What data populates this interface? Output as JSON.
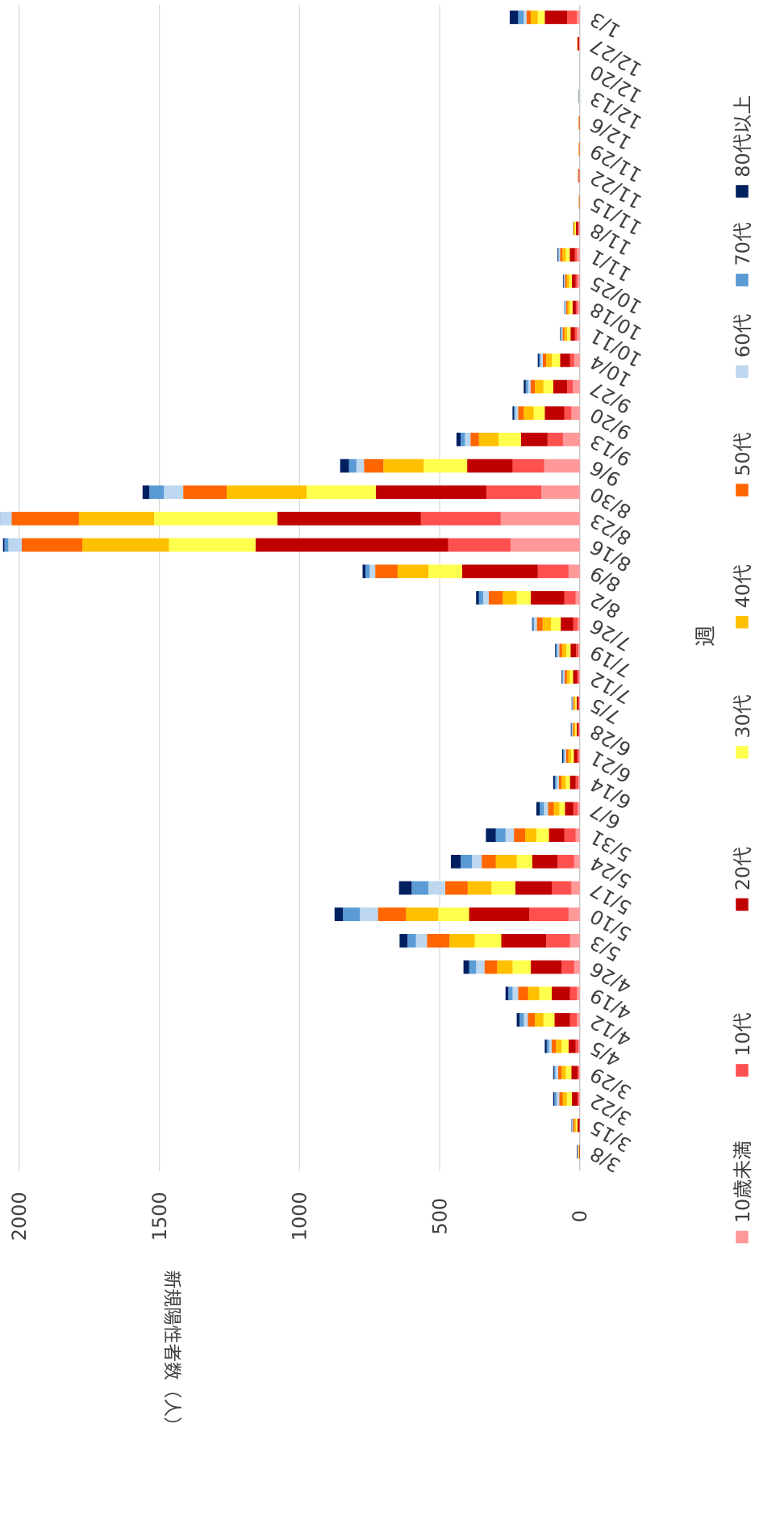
{
  "chart_data": {
    "type": "bar",
    "stacked": true,
    "orientation": "rotated",
    "x_label": "週",
    "y_label": "新規陽性者数（人）",
    "categories": [
      "3/8",
      "3/15",
      "3/22",
      "3/29",
      "4/5",
      "4/12",
      "4/19",
      "4/26",
      "5/3",
      "5/10",
      "5/17",
      "5/24",
      "5/31",
      "6/7",
      "6/14",
      "6/21",
      "6/28",
      "7/5",
      "7/12",
      "7/19",
      "7/26",
      "8/2",
      "8/9",
      "8/16",
      "8/23",
      "8/30",
      "9/6",
      "9/13",
      "9/20",
      "9/27",
      "10/4",
      "10/11",
      "10/18",
      "10/25",
      "11/1",
      "11/8",
      "11/15",
      "11/22",
      "11/29",
      "12/6",
      "12/13",
      "12/20",
      "12/27",
      "1/3"
    ],
    "series": [
      {
        "name": "10歳未満",
        "color": "#ff9999",
        "values": [
          0,
          0,
          3,
          3,
          5,
          10,
          10,
          20,
          35,
          40,
          30,
          20,
          15,
          8,
          5,
          3,
          2,
          2,
          3,
          5,
          8,
          15,
          40,
          247,
          282,
          137,
          127,
          60,
          30,
          25,
          20,
          10,
          8,
          8,
          10,
          3,
          0,
          1,
          1,
          0,
          0,
          0,
          2,
          10
        ]
      },
      {
        "name": "10代",
        "color": "#ff5050",
        "values": [
          0,
          1,
          5,
          5,
          10,
          25,
          25,
          45,
          85,
          140,
          70,
          60,
          40,
          15,
          10,
          6,
          3,
          3,
          6,
          8,
          15,
          40,
          110,
          223,
          285,
          196,
          113,
          55,
          25,
          20,
          15,
          8,
          6,
          7,
          8,
          3,
          0,
          1,
          0,
          1,
          0,
          0,
          1,
          35
        ]
      },
      {
        "name": "20代",
        "color": "#c00000",
        "values": [
          2,
          7,
          20,
          22,
          25,
          55,
          65,
          110,
          160,
          215,
          130,
          90,
          55,
          30,
          20,
          12,
          6,
          6,
          15,
          20,
          45,
          120,
          270,
          687,
          512,
          395,
          162,
          95,
          70,
          50,
          35,
          15,
          12,
          13,
          18,
          8,
          1,
          2,
          1,
          1,
          0,
          0,
          5,
          80
        ]
      },
      {
        "name": "30代",
        "color": "#ffff4d",
        "values": [
          2,
          6,
          18,
          20,
          25,
          40,
          45,
          65,
          95,
          110,
          85,
          55,
          45,
          20,
          15,
          10,
          5,
          5,
          12,
          15,
          35,
          50,
          120,
          309,
          440,
          247,
          155,
          80,
          40,
          35,
          30,
          12,
          10,
          10,
          14,
          4,
          1,
          1,
          1,
          1,
          1,
          0,
          1,
          25
        ]
      },
      {
        "name": "40代",
        "color": "#ffc000",
        "values": [
          1,
          5,
          15,
          15,
          20,
          30,
          40,
          55,
          90,
          115,
          85,
          75,
          40,
          20,
          15,
          10,
          5,
          5,
          10,
          15,
          30,
          50,
          110,
          309,
          268,
          285,
          144,
          70,
          35,
          30,
          20,
          10,
          8,
          9,
          12,
          3,
          1,
          1,
          1,
          1,
          0,
          0,
          1,
          25
        ]
      },
      {
        "name": "50代",
        "color": "#ff6600",
        "values": [
          1,
          5,
          12,
          12,
          15,
          25,
          35,
          45,
          80,
          100,
          80,
          50,
          40,
          20,
          10,
          8,
          4,
          3,
          8,
          10,
          20,
          50,
          80,
          216,
          240,
          155,
          69,
          30,
          20,
          15,
          12,
          6,
          5,
          6,
          8,
          2,
          1,
          1,
          1,
          1,
          0,
          0,
          0,
          15
        ]
      },
      {
        "name": "60代",
        "color": "#bdd7ee",
        "values": [
          1,
          3,
          10,
          10,
          10,
          15,
          20,
          30,
          40,
          65,
          60,
          35,
          30,
          15,
          8,
          6,
          3,
          2,
          6,
          7,
          10,
          20,
          20,
          48,
          41,
          69,
          27,
          20,
          10,
          10,
          8,
          4,
          3,
          3,
          5,
          1,
          1,
          1,
          0,
          0,
          1,
          0,
          0,
          10
        ]
      },
      {
        "name": "70代",
        "color": "#5b9bd5",
        "values": [
          1,
          2,
          8,
          5,
          8,
          15,
          15,
          25,
          30,
          60,
          60,
          40,
          35,
          15,
          6,
          4,
          2,
          2,
          3,
          5,
          5,
          15,
          15,
          14,
          5,
          52,
          27,
          15,
          5,
          8,
          5,
          3,
          2,
          2,
          3,
          1,
          0,
          0,
          0,
          0,
          1,
          0,
          0,
          20
        ]
      },
      {
        "name": "80代以上",
        "color": "#002060",
        "values": [
          2,
          1,
          4,
          3,
          7,
          10,
          10,
          20,
          28,
          30,
          45,
          35,
          35,
          12,
          6,
          4,
          2,
          1,
          2,
          3,
          2,
          10,
          10,
          5,
          3,
          24,
          31,
          15,
          5,
          7,
          5,
          2,
          1,
          2,
          2,
          0,
          0,
          0,
          0,
          0,
          1,
          0,
          0,
          30
        ]
      }
    ],
    "ylim": [
      0,
      2000
    ],
    "yticks": [
      0,
      500,
      1000,
      1500,
      2000
    ],
    "grid": true
  }
}
